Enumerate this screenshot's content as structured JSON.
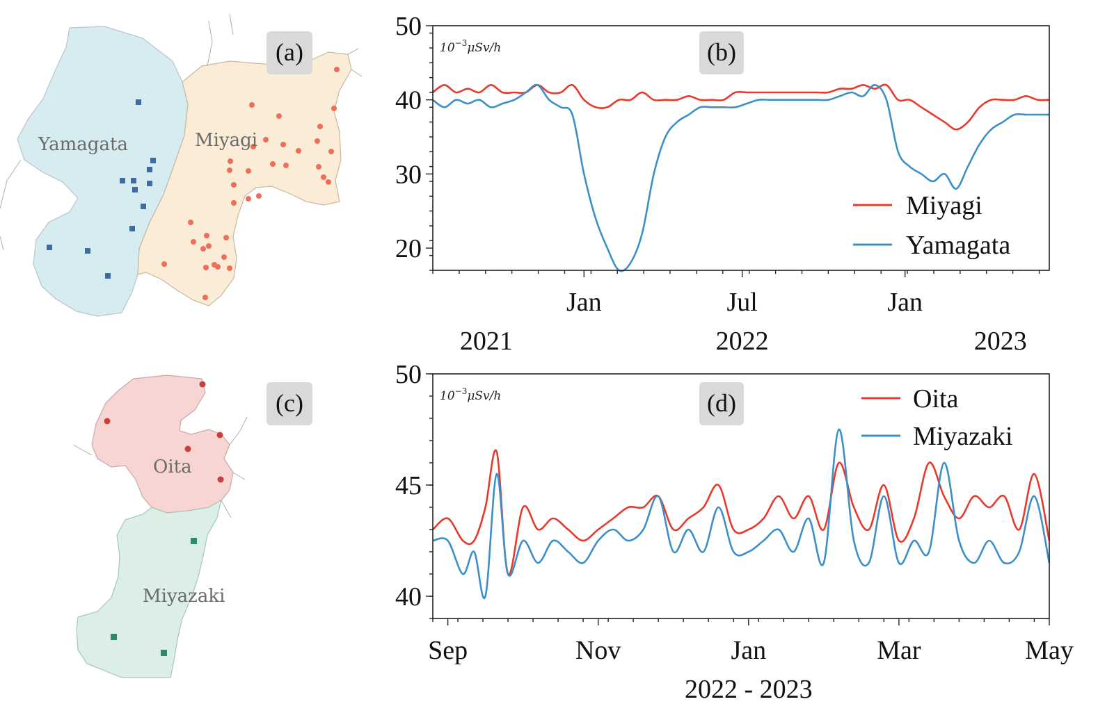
{
  "chart_data": [
    {
      "panel": "(b)",
      "type": "line",
      "unit_label_base": "10",
      "unit_label_exp": "−3",
      "unit_label_rest": "μSv/h",
      "ylim": [
        17,
        50
      ],
      "yticks": [
        20,
        30,
        40,
        50
      ],
      "xlim": [
        0,
        26.5
      ],
      "xticks": [
        {
          "x": 6.5,
          "label": "Jan"
        },
        {
          "x": 13.3,
          "label": "Jul"
        },
        {
          "x": 20.3,
          "label": "Jan"
        }
      ],
      "year_labels": [
        {
          "x": 2.3,
          "label": "2021"
        },
        {
          "x": 13.3,
          "label": "2022"
        },
        {
          "x": 24.4,
          "label": "2023"
        }
      ],
      "legend": [
        "Miyagi",
        "Yamagata"
      ],
      "series": [
        {
          "name": "Miyagi",
          "color": "#e8392b",
          "x": [
            0,
            0.5,
            1,
            1.5,
            2,
            2.5,
            3,
            3.5,
            4,
            4.5,
            5,
            5.5,
            6,
            6.5,
            7,
            7.5,
            8,
            8.5,
            9,
            9.5,
            10,
            10.5,
            11,
            11.5,
            12,
            12.5,
            13,
            13.5,
            14,
            14.5,
            15,
            15.5,
            16,
            16.5,
            17,
            17.5,
            18,
            18.5,
            19,
            19.5,
            20,
            20.5,
            21,
            21.5,
            22,
            22.5,
            23,
            23.5,
            24,
            24.5,
            25,
            25.5,
            26,
            26.5
          ],
          "values": [
            41,
            42,
            41,
            41.5,
            41,
            42,
            41,
            41,
            41,
            42,
            41,
            41,
            42,
            40,
            39,
            39,
            40,
            40,
            41,
            40,
            40,
            40,
            40.5,
            40,
            40,
            40,
            41,
            41,
            41,
            41,
            41,
            41,
            41,
            41,
            41,
            41.5,
            41.5,
            42,
            41.5,
            42,
            40,
            40,
            39,
            38,
            37,
            36,
            37,
            39,
            40,
            40,
            40,
            40.5,
            40,
            40
          ]
        },
        {
          "name": "Yamagata",
          "color": "#3d8fc8",
          "x": [
            0,
            0.5,
            1,
            1.5,
            2,
            2.5,
            3,
            3.5,
            4,
            4.5,
            5,
            5.5,
            6,
            6.5,
            7,
            7.5,
            8,
            8.5,
            9,
            9.5,
            10,
            10.5,
            11,
            11.5,
            12,
            12.5,
            13,
            13.5,
            14,
            14.5,
            15,
            15.5,
            16,
            16.5,
            17,
            17.5,
            18,
            18.5,
            19,
            19.5,
            20,
            20.5,
            21,
            21.5,
            22,
            22.5,
            23,
            23.5,
            24,
            24.5,
            25,
            25.5,
            26,
            26.5
          ],
          "values": [
            40,
            39,
            40,
            39.5,
            40,
            39,
            39.5,
            40,
            41,
            42,
            40,
            39,
            38,
            30,
            24,
            20,
            17,
            18,
            22,
            30,
            35,
            37,
            38,
            39,
            39,
            39,
            39,
            39.5,
            40,
            40,
            40,
            40,
            40,
            40,
            40,
            40.5,
            41,
            40.5,
            42,
            40,
            33,
            31,
            30,
            29,
            30,
            28,
            31,
            34,
            36,
            37,
            38,
            38,
            38,
            38
          ]
        }
      ]
    },
    {
      "panel": "(d)",
      "type": "line",
      "unit_label_base": "10",
      "unit_label_exp": "−3",
      "unit_label_rest": "μSv/h",
      "ylim": [
        39,
        50
      ],
      "yticks": [
        40,
        45,
        50
      ],
      "xlim": [
        0,
        8.2
      ],
      "xticks": [
        {
          "x": 0.2,
          "label": "Sep"
        },
        {
          "x": 2.2,
          "label": "Nov"
        },
        {
          "x": 4.2,
          "label": "Jan"
        },
        {
          "x": 6.2,
          "label": "Mar"
        },
        {
          "x": 8.2,
          "label": "May"
        }
      ],
      "year_labels": [
        {
          "x": 4.2,
          "label": "2022 - 2023"
        }
      ],
      "legend": [
        "Oita",
        "Miyazaki"
      ],
      "series": [
        {
          "name": "Oita",
          "color": "#e8392b",
          "x": [
            0,
            0.2,
            0.4,
            0.55,
            0.7,
            0.85,
            1.0,
            1.2,
            1.4,
            1.6,
            1.8,
            2.0,
            2.2,
            2.4,
            2.6,
            2.8,
            3.0,
            3.2,
            3.4,
            3.6,
            3.8,
            4.0,
            4.2,
            4.4,
            4.6,
            4.8,
            5.0,
            5.2,
            5.4,
            5.6,
            5.8,
            6.0,
            6.2,
            6.4,
            6.6,
            6.8,
            7.0,
            7.2,
            7.4,
            7.6,
            7.8,
            8.0,
            8.2
          ],
          "values": [
            43,
            43.5,
            42.5,
            42.5,
            44,
            46.5,
            41,
            44,
            43,
            43.5,
            43,
            42.5,
            43,
            43.5,
            44,
            44,
            44.5,
            43,
            43.5,
            44,
            45,
            43,
            43,
            43.5,
            44.5,
            43.5,
            44.5,
            43,
            46,
            44,
            43,
            45,
            42.5,
            43.5,
            46,
            44.5,
            43.5,
            44.5,
            44,
            44.5,
            43,
            45.5,
            42.5
          ]
        },
        {
          "name": "Miyazaki",
          "color": "#3d8fc8",
          "x": [
            0,
            0.2,
            0.4,
            0.55,
            0.7,
            0.85,
            1.0,
            1.2,
            1.4,
            1.6,
            1.8,
            2.0,
            2.2,
            2.4,
            2.6,
            2.8,
            3.0,
            3.2,
            3.4,
            3.6,
            3.8,
            4.0,
            4.2,
            4.4,
            4.6,
            4.8,
            5.0,
            5.2,
            5.4,
            5.6,
            5.8,
            6.0,
            6.2,
            6.4,
            6.6,
            6.8,
            7.0,
            7.2,
            7.4,
            7.6,
            7.8,
            8.0,
            8.2
          ],
          "values": [
            42.5,
            42.5,
            41,
            42,
            40,
            45.5,
            41,
            42.5,
            41.5,
            42.5,
            42,
            41.5,
            42.5,
            43,
            42.5,
            43,
            44.5,
            42,
            43,
            42,
            44,
            42,
            42,
            42.5,
            43,
            42,
            43.5,
            41.5,
            47.5,
            42.5,
            41.5,
            44.5,
            41.5,
            42.5,
            42,
            46,
            42.5,
            41.5,
            42.5,
            41.5,
            42,
            44.5,
            41.5
          ]
        }
      ]
    }
  ],
  "maps": {
    "panel_a": {
      "label": "(a)",
      "regions": [
        {
          "name": "Yamagata",
          "fill": "#d6ecf0",
          "marker_color": "#3f6b9e"
        },
        {
          "name": "Miyagi",
          "fill": "#fbecd7",
          "marker_color": "#ec6f5c"
        }
      ]
    },
    "panel_c": {
      "label": "(c)",
      "regions": [
        {
          "name": "Oita",
          "fill": "#f7d5d2",
          "marker_color": "#c8403a"
        },
        {
          "name": "Miyazaki",
          "fill": "#dcefe7",
          "marker_color": "#2d8a6e"
        }
      ]
    }
  }
}
